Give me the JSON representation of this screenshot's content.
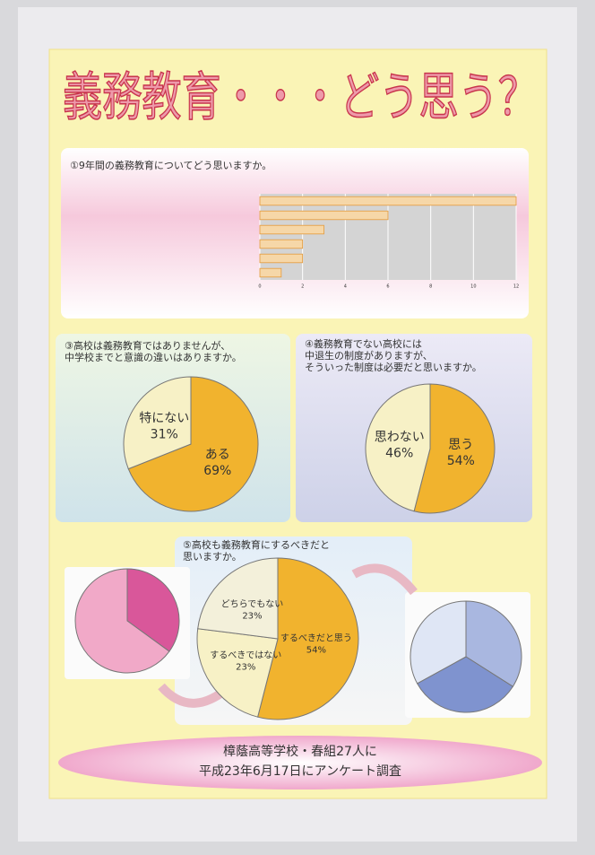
{
  "title": "義務教育・・・どう思う？",
  "chart_data": [
    {
      "type": "bar",
      "title": [
        "①9年間の義務教育についてどう思いますか。"
      ],
      "categories": [
        null,
        null,
        null,
        null,
        null,
        null
      ],
      "values": [
        12,
        6,
        3,
        2,
        2,
        1
      ],
      "color": "#f6d7a8",
      "xlim": [
        0,
        12
      ],
      "xticks": [
        0,
        2,
        4,
        6,
        8,
        10,
        12
      ],
      "grid": true
    },
    {
      "type": "pie",
      "title": [
        "③高校は義務教育ではありませんが、",
        "中学校までと意識の違いはありますか。"
      ],
      "categories": [
        "ある",
        "特にない"
      ],
      "values": [
        69,
        31
      ],
      "value_labels": [
        "69%",
        "31%"
      ],
      "colors": [
        "#f1b32e",
        "#f7f1c6"
      ]
    },
    {
      "type": "pie",
      "title": [
        "④義務教育でない高校には",
        "中退生の制度がありますが、",
        "そういった制度は必要だと思いますか。"
      ],
      "categories": [
        "思う",
        "思わない"
      ],
      "values": [
        54,
        46
      ],
      "value_labels": [
        "54%",
        "46%"
      ],
      "colors": [
        "#f1b32e",
        "#f7f1c6"
      ]
    },
    {
      "type": "pie",
      "categories": [
        null,
        null
      ],
      "values": [
        35,
        65
      ],
      "colors": [
        "#d9579a",
        "#f1a9c8"
      ]
    },
    {
      "type": "pie",
      "title": [
        "⑤高校も義務教育にするべきだと",
        "思いますか。"
      ],
      "categories": [
        "するべきだと思う",
        "するべきではない",
        "どちらでもない"
      ],
      "values": [
        54,
        23,
        23
      ],
      "value_labels": [
        "54%",
        "23%",
        "23%"
      ],
      "colors": [
        "#f1b32e",
        "#f7f1c6",
        "#f3f0da"
      ]
    },
    {
      "type": "pie",
      "categories": [
        null,
        null,
        null
      ],
      "values": [
        34,
        33,
        33
      ],
      "colors": [
        "#a9b7e0",
        "#7f93cf",
        "#dfe6f5"
      ]
    }
  ],
  "footer": [
    "樟蔭高等学校・春組27人に",
    "平成23年6月17日にアンケート調査"
  ]
}
